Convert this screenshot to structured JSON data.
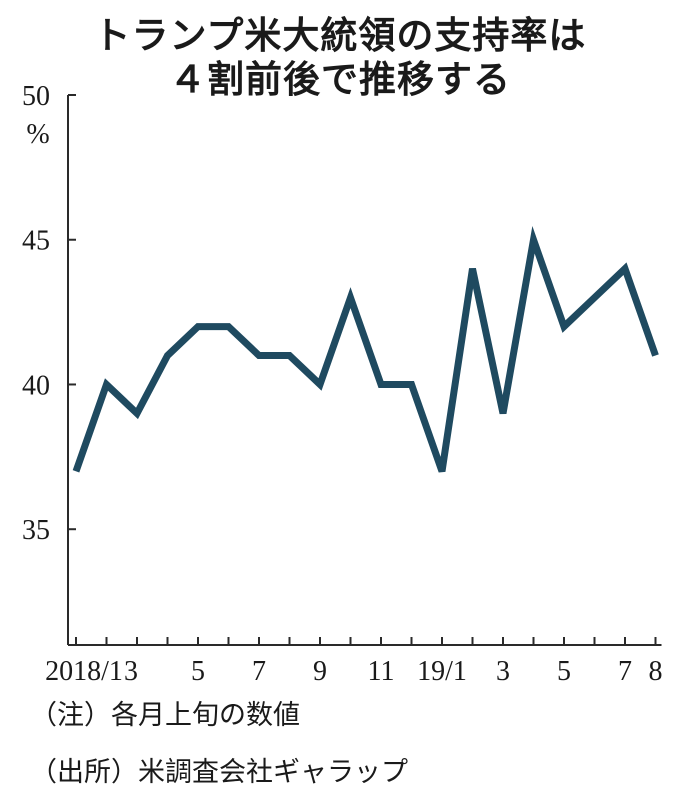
{
  "title_lines": [
    "トランプ米大統領の支持率は",
    "４割前後で推移する"
  ],
  "notes": [
    "（注）各月上旬の数値",
    "（出所）米調査会社ギャラップ"
  ],
  "colors": {
    "line": "#1f4a60",
    "axis": "#2a2a2a",
    "text": "#1a1a1a"
  },
  "chart_data": {
    "type": "line",
    "ylim": [
      31,
      50
    ],
    "y_unit": "%",
    "y_ticks": [
      35,
      40,
      45,
      50
    ],
    "x_tick_labels": [
      {
        "i": 0,
        "label": "2018/1"
      },
      {
        "i": 2,
        "label": "3"
      },
      {
        "i": 4,
        "label": "5"
      },
      {
        "i": 6,
        "label": "7"
      },
      {
        "i": 8,
        "label": "9"
      },
      {
        "i": 10,
        "label": "11"
      },
      {
        "i": 12,
        "label": "19/1"
      },
      {
        "i": 14,
        "label": "3"
      },
      {
        "i": 16,
        "label": "5"
      },
      {
        "i": 18,
        "label": "7"
      },
      {
        "i": 19,
        "label": "8"
      }
    ],
    "series": [
      {
        "x": [
          "2018/1",
          "2018/2",
          "2018/3",
          "2018/4",
          "2018/5",
          "2018/6",
          "2018/7",
          "2018/8",
          "2018/9",
          "2018/10",
          "2018/11",
          "2018/12",
          "2019/1",
          "2019/2",
          "2019/3",
          "2019/4",
          "2019/5",
          "2019/6",
          "2019/7",
          "2019/8"
        ],
        "values": [
          37,
          40,
          39,
          41,
          42,
          42,
          41,
          41,
          40,
          43,
          40,
          40,
          37,
          44,
          39,
          45,
          42,
          43,
          44,
          41
        ]
      }
    ],
    "grid": false
  }
}
